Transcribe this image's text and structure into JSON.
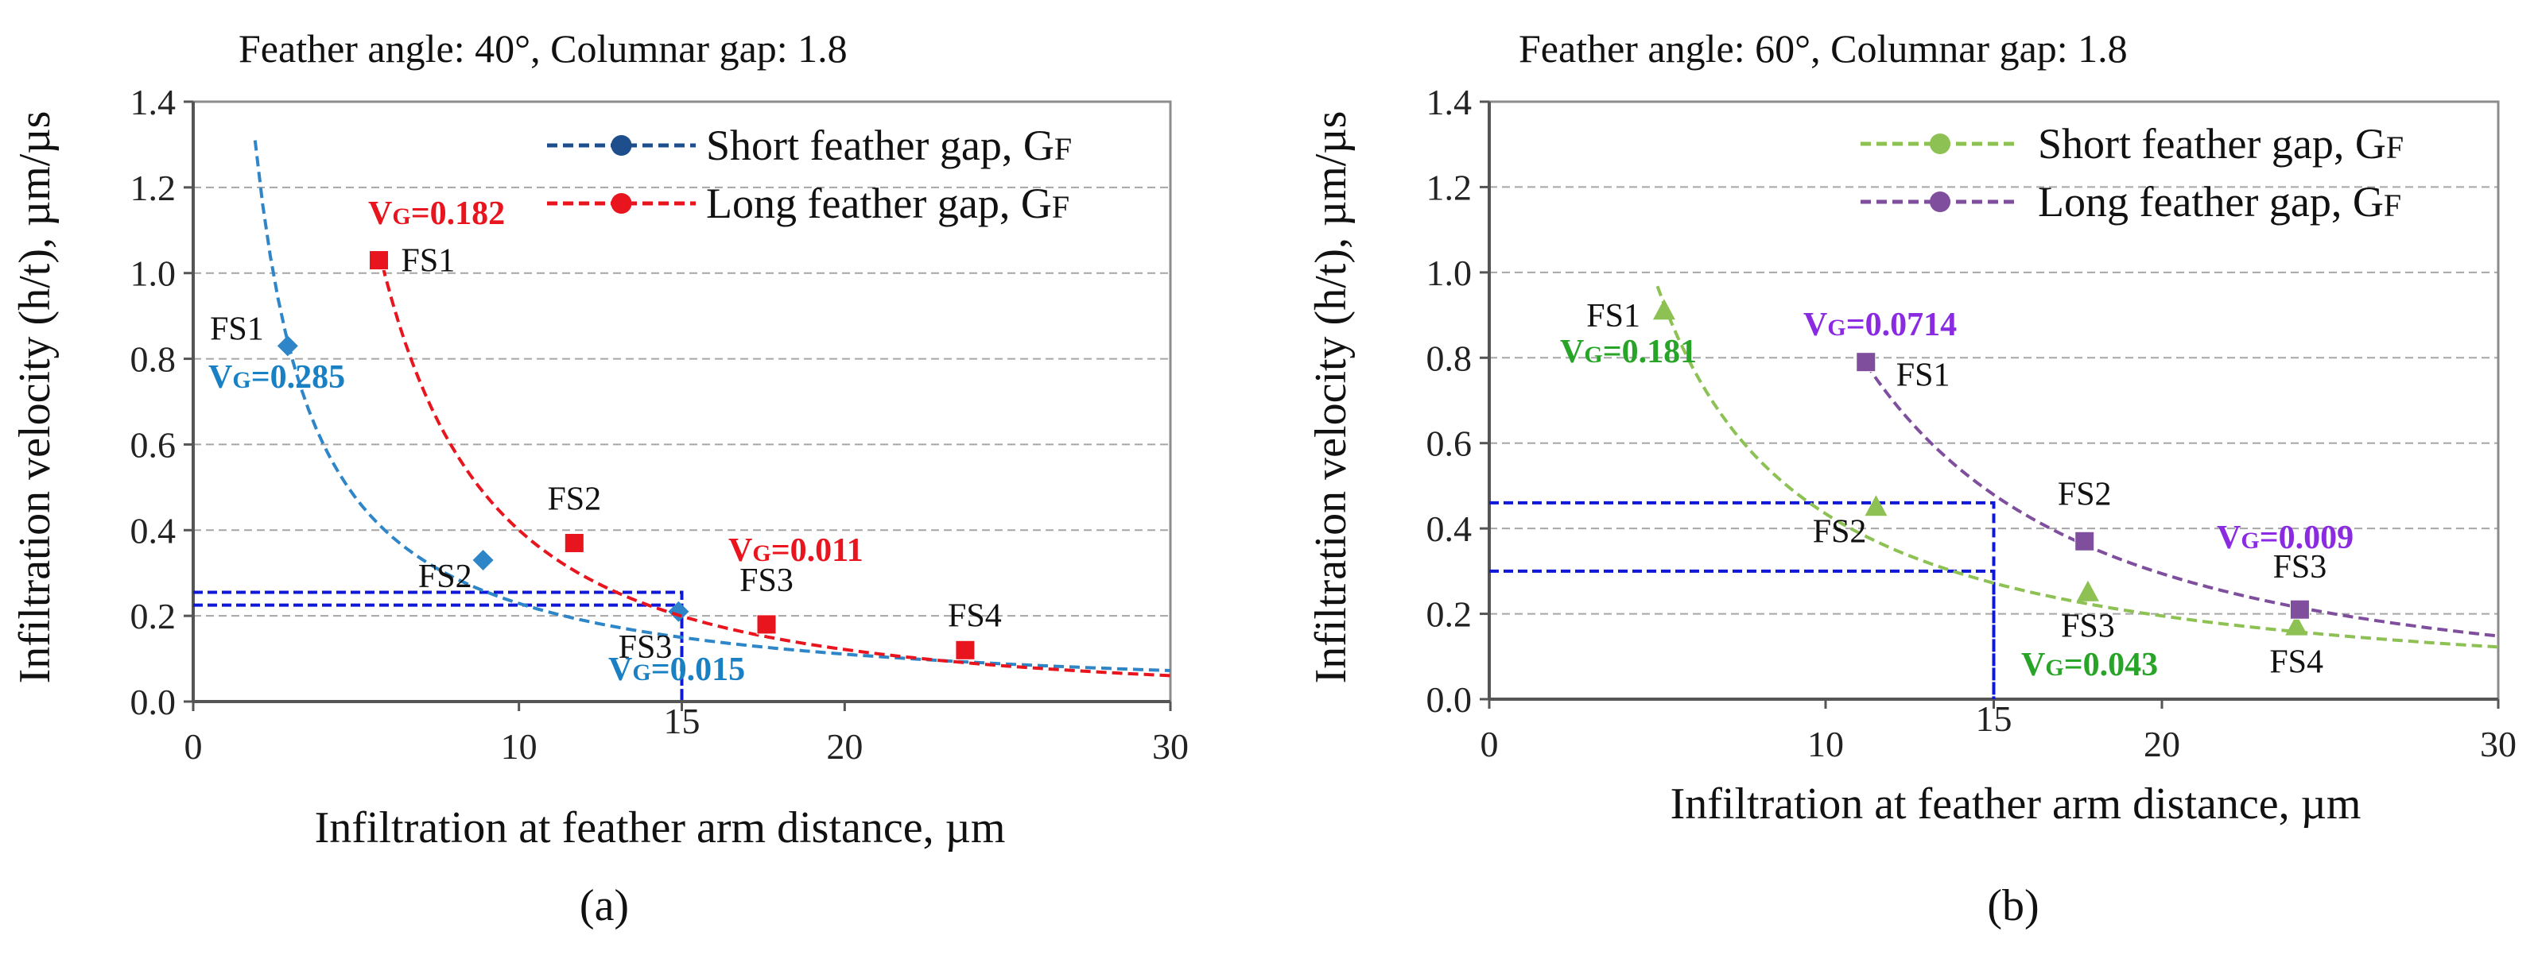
{
  "chart_data": [
    {
      "type": "scatter",
      "panel_label": "(a)",
      "title": "Feather angle: 40°, Columnar gap: 1.8",
      "xlabel": "Infiltration at feather arm distance, µm",
      "ylabel": "Infiltration velocity (h/t), µm/µs",
      "xlim": [
        0,
        30
      ],
      "ylim": [
        0,
        1.4
      ],
      "xticks": [
        "0",
        "10",
        "15",
        "20",
        "30"
      ],
      "xtick_values": [
        0,
        10,
        15,
        20,
        30
      ],
      "yticks": [
        "0.0",
        "0.2",
        "0.4",
        "0.6",
        "0.8",
        "1.0",
        "1.2",
        "1.4"
      ],
      "ytick_values": [
        0,
        0.2,
        0.4,
        0.6,
        0.8,
        1.0,
        1.2,
        1.4
      ],
      "grid": "horizontal dashed",
      "legend": "top-right",
      "series": [
        {
          "name": "Short feather gap, G",
          "name_sub": "F",
          "legend_color": "#1f4e8c",
          "color": "#2e86c8",
          "marker": "diamond",
          "points": [
            {
              "label": "FS1",
              "x": 2.9,
              "y": 0.83
            },
            {
              "label": "FS2",
              "x": 8.9,
              "y": 0.33
            },
            {
              "label": "FS3",
              "x": 14.9,
              "y": 0.21
            }
          ],
          "trend": {
            "model": "power",
            "a": 2.57,
            "b": -1.05,
            "x_from": 1.9,
            "x_to": 30
          },
          "vg_labels": [
            {
              "prefix": "V",
              "sub": "G",
              "text": "=0.285"
            },
            {
              "prefix": "V",
              "sub": "G",
              "text": "=0.015"
            }
          ]
        },
        {
          "name": "Long feather gap, G",
          "name_sub": "F",
          "legend_color": "#e8141e",
          "color": "#e8141e",
          "marker": "square",
          "points": [
            {
              "label": "FS1",
              "x": 5.7,
              "y": 1.03
            },
            {
              "label": "FS2",
              "x": 11.7,
              "y": 0.37
            },
            {
              "label": "FS3",
              "x": 17.6,
              "y": 0.18
            },
            {
              "label": "FS4",
              "x": 23.7,
              "y": 0.12
            }
          ],
          "trend": {
            "model": "power",
            "a": 21.0,
            "b": -1.72,
            "x_from": 5.7,
            "x_to": 30
          },
          "vg_labels": [
            {
              "prefix": "V",
              "sub": "G",
              "text": "=0.182"
            },
            {
              "prefix": "V",
              "sub": "G",
              "text": "=0.011"
            }
          ]
        }
      ],
      "reference_lines": [
        {
          "x": 15,
          "y": 0.255,
          "color": "#1018d8"
        },
        {
          "x": 15,
          "y": 0.225,
          "color": "#1018d8"
        }
      ]
    },
    {
      "type": "scatter",
      "panel_label": "(b)",
      "title": "Feather angle: 60°, Columnar gap: 1.8",
      "xlabel": "Infiltration at feather arm distance, µm",
      "ylabel": "Infiltration velocity (h/t), µm/µs",
      "xlim": [
        0,
        30
      ],
      "ylim": [
        0,
        1.4
      ],
      "xticks": [
        "0",
        "10",
        "15",
        "20",
        "30"
      ],
      "xtick_values": [
        0,
        10,
        15,
        20,
        30
      ],
      "yticks": [
        "0.0",
        "0.2",
        "0.4",
        "0.6",
        "0.8",
        "1.0",
        "1.2",
        "1.4"
      ],
      "ytick_values": [
        0,
        0.2,
        0.4,
        0.6,
        0.8,
        1.0,
        1.2,
        1.4
      ],
      "grid": "horizontal dashed",
      "legend": "top-right",
      "series": [
        {
          "name": "Short feather gap, G",
          "name_sub": "F",
          "legend_color": "#8dc153",
          "color": "#8dc153",
          "marker": "triangle",
          "points": [
            {
              "label": "FS1",
              "x": 5.2,
              "y": 0.91
            },
            {
              "label": "FS2",
              "x": 11.5,
              "y": 0.45
            },
            {
              "label": "FS3",
              "x": 17.8,
              "y": 0.25
            },
            {
              "label": "FS4",
              "x": 24.0,
              "y": 0.17
            }
          ],
          "trend": {
            "model": "power",
            "a": 6.21,
            "b": -1.155,
            "x_from": 5.0,
            "x_to": 30
          },
          "vg_labels": [
            {
              "prefix": "V",
              "sub": "G",
              "text": "=0.181"
            },
            {
              "prefix": "V",
              "sub": "G",
              "text": "=0.043"
            }
          ]
        },
        {
          "name": "Long feather gap, G",
          "name_sub": "F",
          "legend_color": "#7f4f9e",
          "color": "#7f4f9e",
          "marker": "square",
          "points": [
            {
              "label": "FS1",
              "x": 11.2,
              "y": 0.79
            },
            {
              "label": "FS2",
              "x": 17.7,
              "y": 0.37
            },
            {
              "label": "FS3",
              "x": 24.1,
              "y": 0.21
            }
          ],
          "trend": {
            "model": "power",
            "a": 47.2,
            "b": -1.695,
            "x_from": 11.2,
            "x_to": 30
          },
          "vg_labels": [
            {
              "prefix": "V",
              "sub": "G",
              "text": "=0.0714"
            },
            {
              "prefix": "V",
              "sub": "G",
              "text": "=0.009"
            }
          ]
        }
      ],
      "reference_lines": [
        {
          "x": 15,
          "y": 0.46,
          "color": "#1018d8"
        },
        {
          "x": 15,
          "y": 0.3,
          "color": "#1018d8"
        }
      ]
    }
  ]
}
